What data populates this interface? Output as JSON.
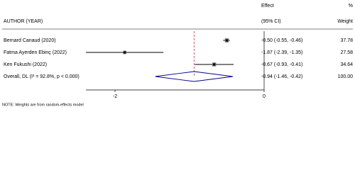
{
  "chart_data": {
    "type": "forest",
    "column_headers": {
      "study": "AUTHOR (YEAR)",
      "effect": [
        "Effect",
        "(95% CI)"
      ],
      "weight": [
        "%",
        "Weight"
      ]
    },
    "categories": [
      "Bernard Canaud (2020)",
      "Fatma Ayerden Ebinç (2022)",
      "Ken Fukushi (2022)"
    ],
    "values": [
      -0.5,
      -1.87,
      -0.67
    ],
    "lower": [
      -0.55,
      -2.39,
      -0.93
    ],
    "upper": [
      -0.46,
      -1.35,
      -0.41
    ],
    "value_labels": [
      "-0.50 (-0.55, -0.46)",
      "-1.87 (-2.39, -1.35)",
      "-0.67 (-0.93, -0.41)"
    ],
    "weights": [
      37.78,
      27.58,
      34.64
    ],
    "overall": {
      "label": "Overall, DL (I² = 92.8%, p < 0.000)",
      "value": -0.94,
      "lower": -1.46,
      "upper": -0.42,
      "value_label": "-0.94 (-1.46, -0.42)",
      "weight": 100,
      "weight_label": "100.00",
      "color": "#00008b"
    },
    "overall_line_color": "#a0182d",
    "xlim": [
      -2.39,
      0
    ],
    "xticks": [
      -2,
      0
    ],
    "note": "NOTE: Weights are from random-effects model"
  }
}
